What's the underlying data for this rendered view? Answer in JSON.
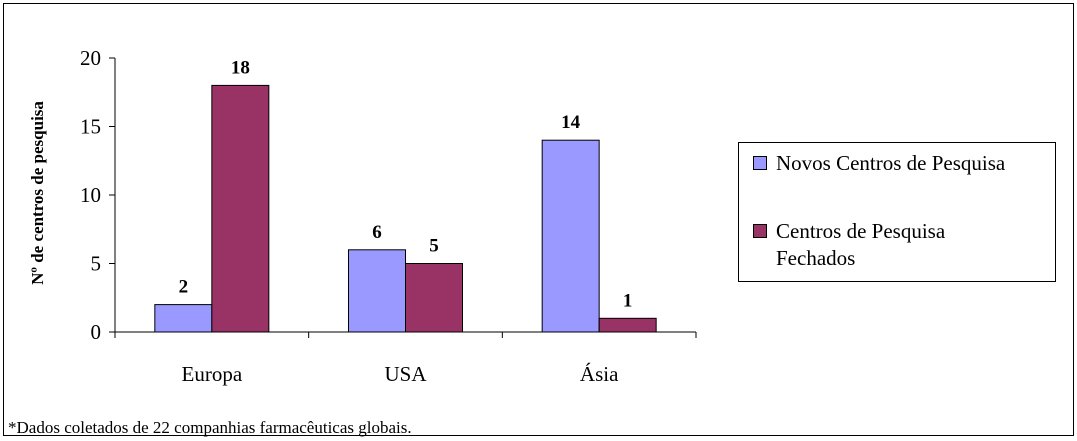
{
  "chart_data": {
    "type": "bar",
    "categories": [
      "Europa",
      "USA",
      "Ásia"
    ],
    "series": [
      {
        "name": "Novos Centros de Pesquisa",
        "values": [
          2,
          6,
          14
        ],
        "color": "#9999ff"
      },
      {
        "name": "Centros de Pesquisa Fechados",
        "values": [
          18,
          5,
          1
        ],
        "color": "#993366"
      }
    ],
    "ylabel": "Nº de centros de pesquisa",
    "ylim": [
      0,
      20
    ],
    "yticks": [
      "0",
      "5",
      "10",
      "15",
      "20"
    ],
    "grid": false,
    "legend_position": "right",
    "data_labels": true
  },
  "footnote": "*Dados coletados de 22 companhias farmacêuticas globais."
}
